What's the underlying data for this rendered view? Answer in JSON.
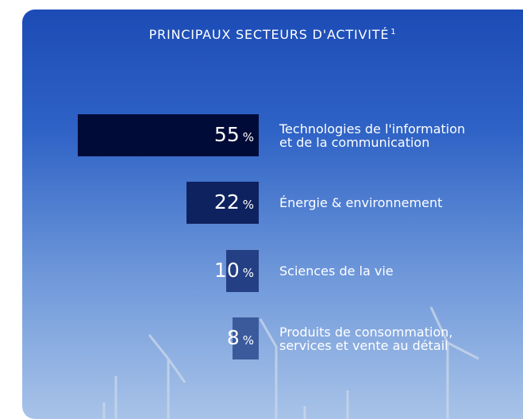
{
  "chart_data": {
    "type": "bar",
    "orientation": "horizontal",
    "title": "PRINCIPAUX SECTEURS D'ACTIVITÉ",
    "title_note": "1",
    "categories": [
      "Technologies de l'information\net de la communication",
      "Énergie & environnement",
      "Sciences de la vie",
      "Produits de consommation,\nservices et vente au détail"
    ],
    "values": [
      55,
      22,
      10,
      8
    ],
    "value_unit": "%",
    "colors": [
      "#000b38",
      "#0e225f",
      "#243f83",
      "#3b5a9c"
    ]
  }
}
